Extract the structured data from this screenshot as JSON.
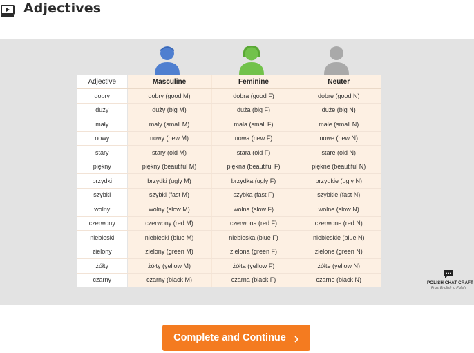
{
  "lesson": {
    "title": "Adjectives",
    "icon": "video-lesson-icon"
  },
  "video": {
    "table": {
      "headers": [
        "Adjective",
        "Masculine",
        "Feminine",
        "Neuter"
      ],
      "rows": [
        [
          "dobry",
          "dobry (good M)",
          "dobra (good F)",
          "dobre (good N)"
        ],
        [
          "duży",
          "duży (big M)",
          "duża (big F)",
          "duże (big N)"
        ],
        [
          "mały",
          "mały (small M)",
          "mała (small F)",
          "małe (small N)"
        ],
        [
          "nowy",
          "nowy (new M)",
          "nowa (new F)",
          "nowe (new N)"
        ],
        [
          "stary",
          "stary (old M)",
          "stara (old F)",
          "stare (old N)"
        ],
        [
          "piękny",
          "piękny (beautiful M)",
          "piękna (beautiful F)",
          "piękne (beautiful N)"
        ],
        [
          "brzydki",
          "brzydki (ugly M)",
          "brzydka (ugly F)",
          "brzydkie (ugly N)"
        ],
        [
          "szybki",
          "szybki (fast M)",
          "szybka (fast F)",
          "szybkie (fast N)"
        ],
        [
          "wolny",
          "wolny (slow M)",
          "wolna (slow F)",
          "wolne (slow N)"
        ],
        [
          "czerwony",
          "czerwony (red M)",
          "czerwona (red F)",
          "czerwone (red N)"
        ],
        [
          "niebieski",
          "niebieski (blue M)",
          "niebieska (blue F)",
          "niebieskie (blue N)"
        ],
        [
          "zielony",
          "zielony (green M)",
          "zielona (green F)",
          "zielone (green N)"
        ],
        [
          "żółty",
          "żółty (yellow M)",
          "żółta (yellow F)",
          "żółte (yellow N)"
        ],
        [
          "czarny",
          "czarny (black M)",
          "czarna (black F)",
          "czarne (black N)"
        ]
      ]
    },
    "avatars": {
      "masculine_color": "#4f7fd0",
      "feminine_color": "#72c24b",
      "neuter_color": "#a9a9a9"
    },
    "watermark": {
      "name": "POLISH CHAT CRAFT",
      "tagline": "From English to Polish",
      "icon": "chat-bubble-icon"
    }
  },
  "footer": {
    "complete_label": "Complete and Continue",
    "button_color": "#f47b20",
    "chevron_icon": "chevron-right-icon"
  }
}
